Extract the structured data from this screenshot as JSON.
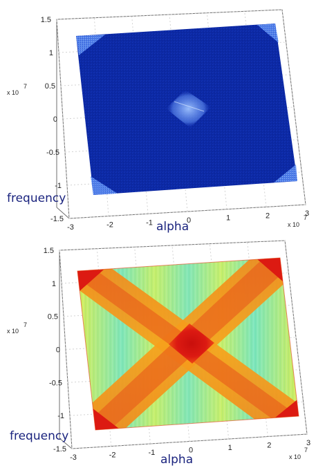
{
  "chart_data": [
    {
      "type": "heatmap",
      "colormap": "dark blue background, light blue highlights",
      "xlabel": "alpha",
      "ylabel": "frequency",
      "x_ticks": [
        -3,
        -2,
        -1,
        0,
        1,
        2,
        3
      ],
      "y_ticks": [
        -1.5,
        -1,
        -0.5,
        0,
        0.5,
        1,
        1.5
      ],
      "x_exponent": "x 10",
      "x_exponent_power": "7",
      "y_exponent": "x 10",
      "y_exponent_power": "7",
      "xlim": [
        -3,
        3
      ],
      "ylim": [
        -1.5,
        1.5
      ],
      "grid": true,
      "features": [
        "small bright diamond at center",
        "bright corners"
      ],
      "colors": {
        "background": "#0d2aa8",
        "highlight": "#9fc3ff"
      }
    },
    {
      "type": "heatmap",
      "colormap": "jet-like: green/cyan to yellow to red",
      "xlabel": "alpha",
      "ylabel": "frequency",
      "x_ticks": [
        -3,
        -2,
        -1,
        0,
        1,
        2,
        3
      ],
      "y_ticks": [
        -1.5,
        -1,
        -0.5,
        0,
        0.5,
        1,
        1.5
      ],
      "x_exponent": "x 10",
      "x_exponent_power": "7",
      "y_exponent": "x 10",
      "y_exponent_power": "7",
      "xlim": [
        -3,
        3
      ],
      "ylim": [
        -1.5,
        1.5
      ],
      "grid": true,
      "features": [
        "red X-shaped diagonal bands",
        "red diamond at center",
        "red corners"
      ],
      "colors": {
        "background": "#7fe6b9",
        "band": "#f7a11b",
        "peak": "#dc1a12"
      }
    }
  ]
}
